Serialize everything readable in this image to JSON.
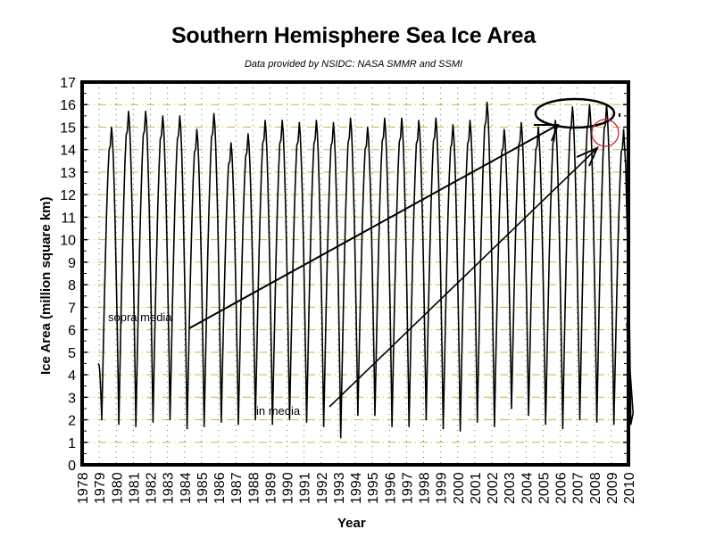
{
  "chart_data": {
    "type": "line",
    "title": "Southern Hemisphere Sea Ice Area",
    "subtitle": "Data provided by NSIDC: NASA SMMR and SSMI",
    "xlabel": "Year",
    "ylabel": "Ice Area (million square km)",
    "xlim": [
      1978,
      2010
    ],
    "ylim": [
      0,
      17
    ],
    "x_ticks": [
      "1978",
      "1979",
      "1980",
      "1981",
      "1982",
      "1983",
      "1984",
      "1985",
      "1986",
      "1987",
      "1988",
      "1989",
      "1990",
      "1991",
      "1992",
      "1993",
      "1994",
      "1995",
      "1996",
      "1997",
      "1998",
      "1999",
      "2000",
      "2001",
      "2002",
      "2003",
      "2004",
      "2005",
      "2006",
      "2007",
      "2008",
      "2009",
      "2010"
    ],
    "y_ticks": [
      0,
      1,
      2,
      3,
      4,
      5,
      6,
      7,
      8,
      9,
      10,
      11,
      12,
      13,
      14,
      15,
      16,
      17
    ],
    "grid": {
      "horizontal": "orange dash-dot",
      "vertical": "green dotted"
    },
    "series": [
      {
        "name": "Southern Hemisphere Sea Ice Area",
        "years": [
          1979,
          1980,
          1981,
          1982,
          1983,
          1984,
          1985,
          1986,
          1987,
          1988,
          1989,
          1990,
          1991,
          1992,
          1993,
          1994,
          1995,
          1996,
          1997,
          1998,
          1999,
          2000,
          2001,
          2002,
          2003,
          2004,
          2005,
          2006,
          2007,
          2008,
          2009
        ],
        "annual_max": [
          15.0,
          15.7,
          15.7,
          15.5,
          15.5,
          14.9,
          15.6,
          14.3,
          14.7,
          15.3,
          15.3,
          15.2,
          15.3,
          15.2,
          15.4,
          15.0,
          15.4,
          15.4,
          15.3,
          15.4,
          15.1,
          15.3,
          16.1,
          14.9,
          15.2,
          15.0,
          15.3,
          15.9,
          16.0,
          16.0,
          14.9
        ],
        "annual_min": [
          2.0,
          1.8,
          1.7,
          1.9,
          2.0,
          1.6,
          1.7,
          1.9,
          1.8,
          2.0,
          1.8,
          2.0,
          1.9,
          1.7,
          1.2,
          2.2,
          2.2,
          1.7,
          1.7,
          2.0,
          1.6,
          1.5,
          1.9,
          1.7,
          2.5,
          2.2,
          1.8,
          1.6,
          2.0,
          1.9,
          1.8
        ],
        "last_value": 6.3,
        "last_year": 2009.9,
        "peak_month_fraction": 0.72,
        "min_month_fraction": 0.15
      }
    ],
    "annotations": [
      {
        "text": "sopra media",
        "meaning": "above average",
        "arrow_to": [
          2005.9,
          15.4
        ]
      },
      {
        "text": "in media",
        "meaning": "average",
        "arrow_to": [
          2008.3,
          14.1
        ]
      },
      {
        "shape": "ellipse",
        "color": "#000000",
        "around_years": [
          2005.2,
          2008.7
        ],
        "around_values": [
          15.2,
          16.2
        ]
      },
      {
        "shape": "circle",
        "color": "#cc2233",
        "around_year": 2009.2,
        "around_value": 14.5
      }
    ],
    "colors": {
      "line": "#000000",
      "hgrid": "#d9a020",
      "vgrid": "#2e7d32",
      "axis": "#000000"
    }
  },
  "labels": {
    "title": "Southern Hemisphere Sea Ice Area",
    "subtitle": "Data provided by NSIDC: NASA SMMR and SSMI",
    "xlabel": "Year",
    "ylabel": "Ice Area (million square km)",
    "annot_above": "sopra media",
    "annot_avg": "in media"
  }
}
